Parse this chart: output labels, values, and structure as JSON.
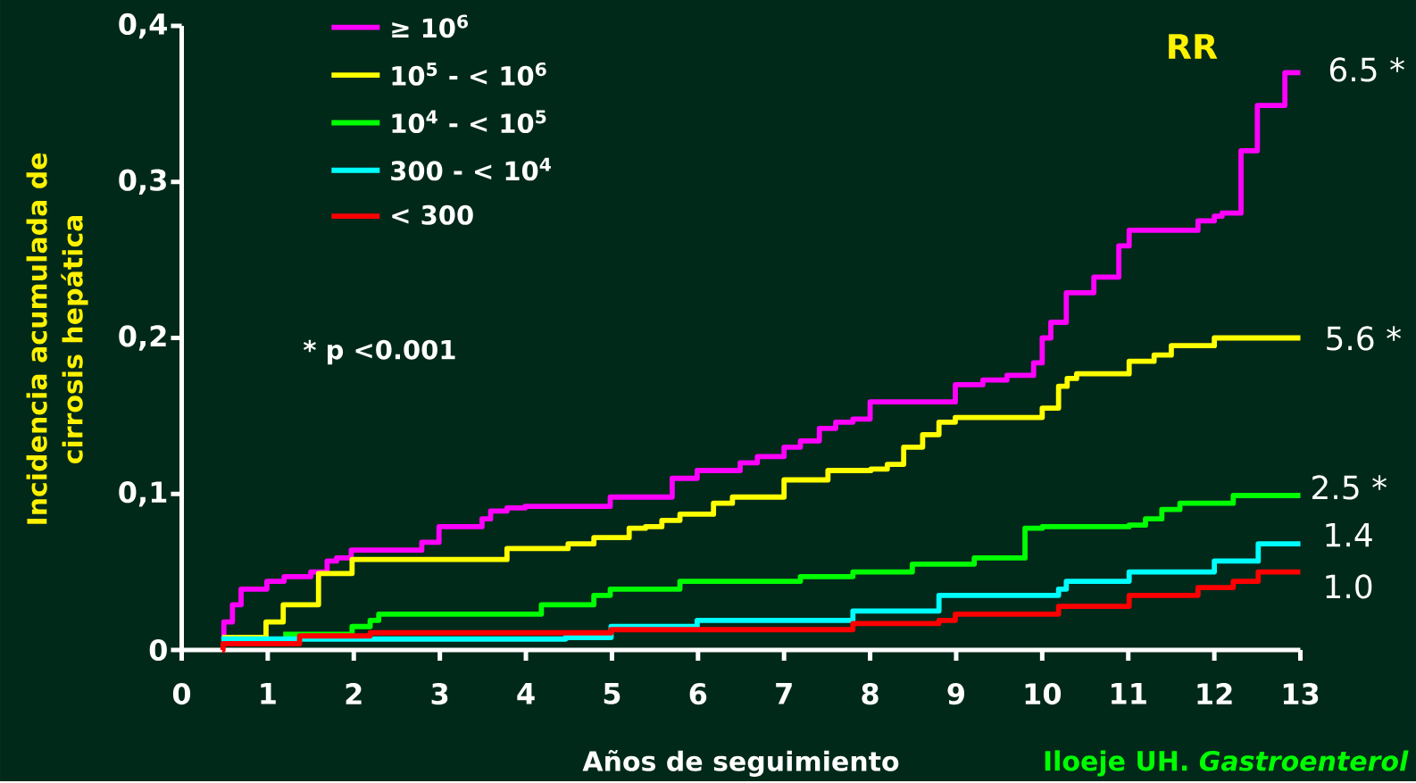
{
  "chart_data": {
    "type": "step",
    "xlabel": "Años de seguimiento",
    "ylabel": "Incidencia acumulada de cirrosis hepática",
    "xlim": [
      0,
      13
    ],
    "ylim": [
      0,
      0.4
    ],
    "xticks": [
      0,
      1,
      2,
      3,
      4,
      5,
      6,
      7,
      8,
      9,
      10,
      11,
      12,
      13
    ],
    "yticks": [
      0,
      {
        "value": 0.1,
        "label": "0,1"
      },
      {
        "value": 0.2,
        "label": "0,2"
      },
      {
        "value": 0.3,
        "label": "0,3"
      },
      {
        "value": 0.4,
        "label": "0,4"
      }
    ],
    "legend": "top left",
    "marker": "none",
    "line_style": "solid",
    "series": [
      {
        "name": "≥ 10$^{6}$",
        "color": "#ff00ff",
        "x": [
          0.47,
          0.49,
          0.59,
          0.69,
          0.99,
          1.19,
          1.5,
          1.69,
          1.8,
          1.97,
          2.79,
          2.99,
          3.49,
          3.59,
          3.78,
          3.99,
          4.98,
          5.7,
          5.99,
          6.49,
          6.69,
          7.0,
          7.19,
          7.41,
          7.6,
          7.8,
          8.0,
          8.99,
          9.31,
          9.59,
          9.9,
          10.0,
          10.1,
          10.28,
          10.6,
          10.89,
          11.01,
          11.81,
          12.0,
          12.09,
          12.31,
          12.5,
          12.82,
          13.0
        ],
        "values": [
          0.008,
          0.018,
          0.029,
          0.039,
          0.044,
          0.047,
          0.05,
          0.057,
          0.059,
          0.064,
          0.069,
          0.079,
          0.084,
          0.089,
          0.091,
          0.092,
          0.098,
          0.11,
          0.115,
          0.12,
          0.124,
          0.13,
          0.134,
          0.142,
          0.146,
          0.148,
          0.159,
          0.17,
          0.173,
          0.176,
          0.184,
          0.2,
          0.21,
          0.229,
          0.239,
          0.259,
          0.269,
          0.275,
          0.278,
          0.28,
          0.32,
          0.349,
          0.37,
          0.37
        ]
      },
      {
        "name": "10$^{5}$ - < 10$^{6}$",
        "color": "#ffff00",
        "x": [
          0.47,
          0.98,
          1.18,
          1.59,
          1.98,
          3.78,
          4.49,
          4.79,
          5.2,
          5.39,
          5.58,
          5.79,
          6.18,
          6.4,
          7.0,
          7.51,
          8.01,
          8.2,
          8.39,
          8.61,
          8.8,
          8.99,
          10.0,
          10.19,
          10.29,
          10.4,
          11.01,
          11.3,
          11.5,
          12.0,
          13.0
        ],
        "values": [
          0.008,
          0.018,
          0.029,
          0.049,
          0.058,
          0.065,
          0.068,
          0.072,
          0.078,
          0.079,
          0.083,
          0.087,
          0.094,
          0.098,
          0.109,
          0.115,
          0.116,
          0.119,
          0.13,
          0.138,
          0.146,
          0.149,
          0.155,
          0.169,
          0.174,
          0.177,
          0.185,
          0.189,
          0.195,
          0.2,
          0.2
        ]
      },
      {
        "name": "10$^{4}$ - < 10$^{5}$",
        "color": "#00ff00",
        "x": [
          1.18,
          1.98,
          2.19,
          2.29,
          4.18,
          4.79,
          4.98,
          5.79,
          7.19,
          7.8,
          8.49,
          9.21,
          9.8,
          10.0,
          11.01,
          11.2,
          11.39,
          11.6,
          12.22,
          13.0
        ],
        "values": [
          0.01,
          0.015,
          0.019,
          0.023,
          0.029,
          0.035,
          0.039,
          0.044,
          0.047,
          0.05,
          0.055,
          0.059,
          0.078,
          0.079,
          0.08,
          0.084,
          0.09,
          0.094,
          0.099,
          0.099
        ]
      },
      {
        "name": "300 - < 10$^{4}$",
        "color": "#00ffff",
        "x": [
          0.46,
          4.46,
          4.99,
          5.99,
          7.8,
          8.8,
          10.19,
          10.28,
          11.01,
          12.0,
          12.51,
          13.0
        ],
        "values": [
          0.007,
          0.008,
          0.015,
          0.019,
          0.025,
          0.035,
          0.039,
          0.044,
          0.05,
          0.057,
          0.068,
          0.068
        ]
      },
      {
        "name": "< 300",
        "color": "#ff0000",
        "x": [
          0.47,
          0.48,
          1.37,
          2.19,
          4.99,
          7.8,
          8.8,
          8.99,
          10.19,
          11.01,
          11.81,
          12.22,
          12.51,
          13.0
        ],
        "values": [
          0.0,
          0.004,
          0.009,
          0.011,
          0.013,
          0.017,
          0.019,
          0.023,
          0.028,
          0.035,
          0.04,
          0.044,
          0.05,
          0.05
        ]
      }
    ],
    "annotations": [
      "RR",
      "6.5 *",
      "5.6 *",
      "2.5 *",
      "1.4",
      "1.0",
      "* p <0.001",
      "Iloeje UH. *Gastroenterol*"
    ]
  }
}
